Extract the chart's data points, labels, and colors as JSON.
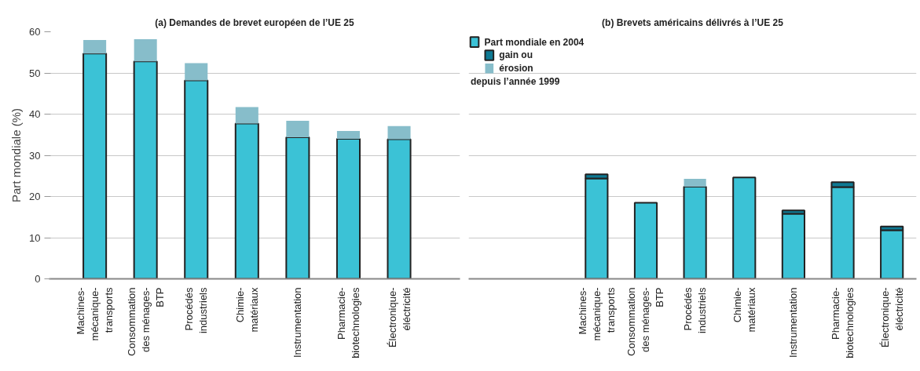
{
  "chart_data": [
    {
      "type": "bar",
      "stacked": true,
      "title": "(a) Demandes de brevet européen de l’UE 25",
      "ylabel": "Part mondiale (%)",
      "categories": [
        "Machines-\nmécanique-\ntransports",
        "Consommation\ndes ménages-\nBTP",
        "Procédés\nindustriels",
        "Chimie-\nmatériaux",
        "Instrumentation",
        "Pharmacie-\nbiotechnologies",
        "Électronique-\néléctricité"
      ],
      "series": [
        {
          "color": "#3bc2d6",
          "values": [
            54.7,
            52.8,
            48.2,
            37.7,
            34.4,
            34.0,
            33.9
          ]
        },
        {
          "color": "#87bdca",
          "values": [
            3.3,
            5.4,
            4.2,
            4.0,
            4.0,
            1.9,
            3.2
          ]
        }
      ],
      "ylim": [
        0,
        60
      ],
      "yticks": [
        0,
        10,
        20,
        30,
        40,
        50,
        60
      ],
      "grid": "y",
      "legend": false
    },
    {
      "type": "bar",
      "stacked": true,
      "title": "(b) Brevets américains délivrés à l’UE 25",
      "categories": [
        "Machines-\nmécanique-\ntransports",
        "Consommation\ndes ménages-\nBTP",
        "Procédés\nindustriels",
        "Chimie-\nmatériaux",
        "Instrumentation",
        "Pharmacie-\nbiotechnologies",
        "Électronique-\néléctricité"
      ],
      "series": [
        {
          "name": "Part mondiale en 2004",
          "color": "#3bc2d6",
          "values": [
            24.4,
            18.5,
            22.4,
            24.6,
            15.8,
            22.3,
            11.8
          ]
        },
        {
          "name": "gain ou",
          "color": "#0e7a94",
          "values": [
            1.0,
            null,
            null,
            null,
            0.8,
            1.2,
            0.9
          ]
        },
        {
          "name": "érosion",
          "color": "#87bdca",
          "values": [
            null,
            null,
            1.9,
            null,
            null,
            null,
            null
          ]
        }
      ],
      "annotations": [
        "depuis l’année 1999"
      ],
      "ylim": [
        0,
        60
      ],
      "yticks": [
        0,
        10,
        20,
        30,
        40,
        50,
        60
      ],
      "tick_labels": "x",
      "grid": "y",
      "legend": "top left"
    }
  ]
}
